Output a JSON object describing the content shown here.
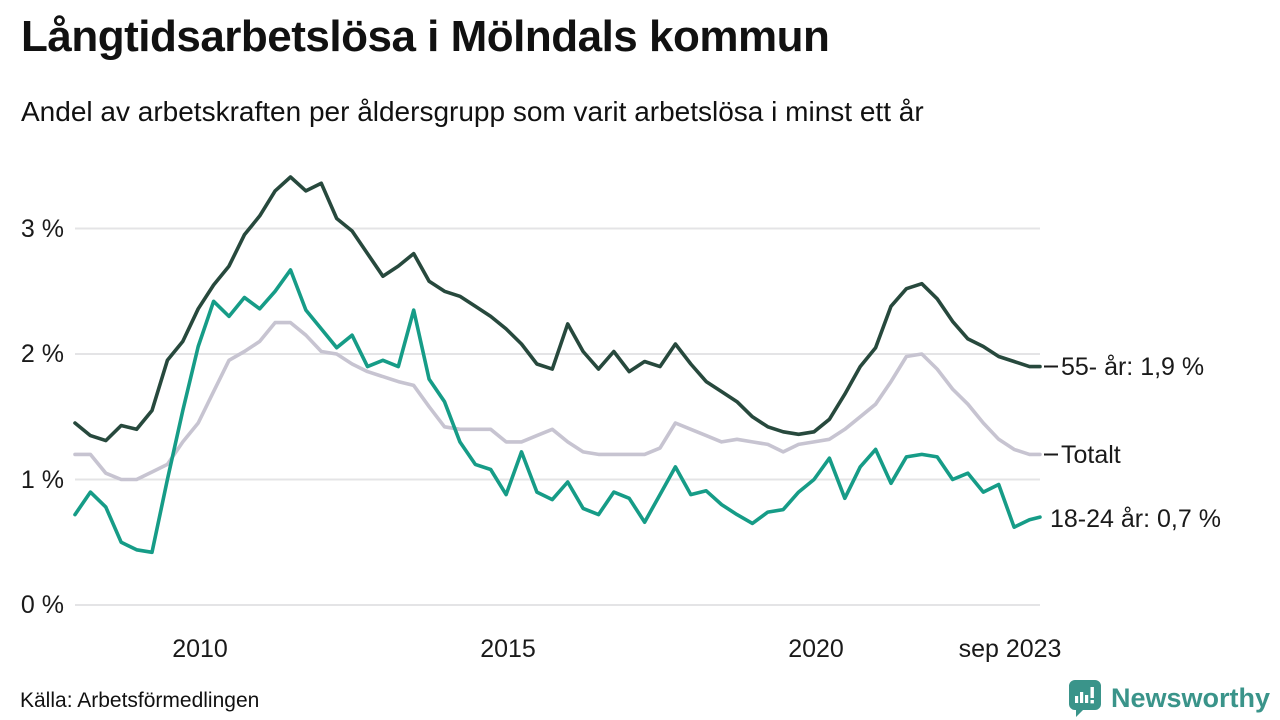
{
  "title": "Långtidsarbetslösa i Mölndals kommun",
  "subtitle": "Andel av arbetskraften per åldersgrupp som varit arbetslösa i minst ett år",
  "source_note": "Källa: Arbetsförmedlingen",
  "branding": {
    "name": "Newsworthy",
    "color": "#3a948a",
    "icon": "bar-chart-speech-bubble-icon"
  },
  "colors": {
    "series_55": "#27493d",
    "series_total": "#c7c4d1",
    "series_18_24": "#169c87",
    "gridline": "#e4e4e6",
    "text": "#1a1a1a",
    "background": "#ffffff"
  },
  "chart_data": {
    "type": "line",
    "title": "Långtidsarbetslösa i Mölndals kommun",
    "subtitle": "Andel av arbetskraften per åldersgrupp som varit arbetslösa i minst ett år",
    "unit": "% av arbetskraften",
    "grid": "horizontal",
    "legend_position": "right-end-labels",
    "xlim": [
      2008.0,
      2023.67
    ],
    "ylim": [
      0,
      3.5
    ],
    "x_unit": "year (decimal, quarterly samples, last point = sep 2023)",
    "y_tick_labels": [
      "0 %",
      "1 %",
      "2 %",
      "3 %"
    ],
    "y_tick_values": [
      0,
      1,
      2,
      3
    ],
    "x_ticks": [
      {
        "label": "2010",
        "year": 2010
      },
      {
        "label": "2015",
        "year": 2015
      },
      {
        "label": "2020",
        "year": 2020
      },
      {
        "label": "sep 2023",
        "year": 2023.67
      }
    ],
    "x": [
      2008.0,
      2008.25,
      2008.5,
      2008.75,
      2009.0,
      2009.25,
      2009.5,
      2009.75,
      2010.0,
      2010.25,
      2010.5,
      2010.75,
      2011.0,
      2011.25,
      2011.5,
      2011.75,
      2012.0,
      2012.25,
      2012.5,
      2012.75,
      2013.0,
      2013.25,
      2013.5,
      2013.75,
      2014.0,
      2014.25,
      2014.5,
      2014.75,
      2015.0,
      2015.25,
      2015.5,
      2015.75,
      2016.0,
      2016.25,
      2016.5,
      2016.75,
      2017.0,
      2017.25,
      2017.5,
      2017.75,
      2018.0,
      2018.25,
      2018.5,
      2018.75,
      2019.0,
      2019.25,
      2019.5,
      2019.75,
      2020.0,
      2020.25,
      2020.5,
      2020.75,
      2021.0,
      2021.25,
      2021.5,
      2021.75,
      2022.0,
      2022.25,
      2022.5,
      2022.75,
      2023.0,
      2023.25,
      2023.5,
      2023.67
    ],
    "series": [
      {
        "name": "55- år",
        "end_label": "55- år: 1,9 %",
        "last_value": 1.9,
        "color": "#27493d",
        "values": [
          1.45,
          1.35,
          1.31,
          1.43,
          1.4,
          1.55,
          1.95,
          2.1,
          2.36,
          2.55,
          2.7,
          2.95,
          3.1,
          3.3,
          3.41,
          3.3,
          3.36,
          3.08,
          2.98,
          2.8,
          2.62,
          2.7,
          2.8,
          2.58,
          2.5,
          2.46,
          2.38,
          2.3,
          2.2,
          2.08,
          1.92,
          1.88,
          2.24,
          2.02,
          1.88,
          2.02,
          1.86,
          1.94,
          1.9,
          2.08,
          1.92,
          1.78,
          1.7,
          1.62,
          1.5,
          1.42,
          1.38,
          1.36,
          1.38,
          1.48,
          1.68,
          1.9,
          2.05,
          2.38,
          2.52,
          2.56,
          2.44,
          2.26,
          2.12,
          2.06,
          1.98,
          1.94,
          1.9,
          1.9
        ]
      },
      {
        "name": "Totalt",
        "end_label": "Totalt",
        "last_value": 1.2,
        "color": "#c7c4d1",
        "values": [
          1.2,
          1.2,
          1.05,
          1.0,
          1.0,
          1.06,
          1.12,
          1.3,
          1.45,
          1.7,
          1.95,
          2.02,
          2.1,
          2.25,
          2.25,
          2.15,
          2.02,
          2.0,
          1.92,
          1.86,
          1.82,
          1.78,
          1.75,
          1.58,
          1.42,
          1.4,
          1.4,
          1.4,
          1.3,
          1.3,
          1.35,
          1.4,
          1.3,
          1.22,
          1.2,
          1.2,
          1.2,
          1.2,
          1.25,
          1.45,
          1.4,
          1.35,
          1.3,
          1.32,
          1.3,
          1.28,
          1.22,
          1.28,
          1.3,
          1.32,
          1.4,
          1.5,
          1.6,
          1.78,
          1.98,
          2.0,
          1.88,
          1.72,
          1.6,
          1.45,
          1.32,
          1.24,
          1.2,
          1.2
        ]
      },
      {
        "name": "18-24 år",
        "end_label": "18-24 år: 0,7 %",
        "last_value": 0.7,
        "color": "#169c87",
        "values": [
          0.72,
          0.9,
          0.78,
          0.5,
          0.44,
          0.42,
          1.0,
          1.55,
          2.06,
          2.42,
          2.3,
          2.45,
          2.36,
          2.5,
          2.67,
          2.35,
          2.2,
          2.05,
          2.15,
          1.9,
          1.95,
          1.9,
          2.35,
          1.8,
          1.62,
          1.3,
          1.12,
          1.08,
          0.88,
          1.22,
          0.9,
          0.84,
          0.98,
          0.77,
          0.72,
          0.9,
          0.85,
          0.66,
          0.88,
          1.1,
          0.88,
          0.91,
          0.8,
          0.72,
          0.65,
          0.74,
          0.76,
          0.9,
          1.0,
          1.17,
          0.85,
          1.1,
          1.24,
          0.97,
          1.18,
          1.2,
          1.18,
          1.0,
          1.05,
          0.9,
          0.96,
          0.62,
          0.68,
          0.7
        ]
      }
    ]
  }
}
